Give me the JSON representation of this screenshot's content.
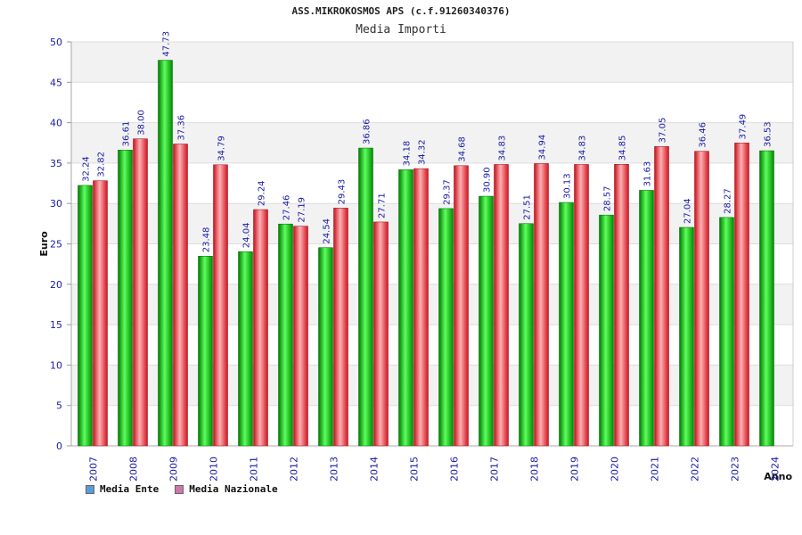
{
  "chart_data": {
    "type": "bar",
    "title": "ASS.MIKROKOSMOS APS (c.f.91260340376)",
    "subtitle": "Media Importi",
    "ylabel": "Euro",
    "xlabel": "Anno",
    "ylim": [
      0,
      50
    ],
    "yticks": [
      0,
      5,
      10,
      15,
      20,
      25,
      30,
      35,
      40,
      45,
      50
    ],
    "categories": [
      "2007",
      "2008",
      "2009",
      "2010",
      "2011",
      "2012",
      "2013",
      "2014",
      "2015",
      "2016",
      "2017",
      "2018",
      "2019",
      "2020",
      "2021",
      "2022",
      "2023",
      "2024"
    ],
    "series": [
      {
        "name": "Media Ente",
        "color": "#00b400",
        "legend_color": "#5b9bd5",
        "values": [
          32.24,
          36.61,
          47.73,
          23.48,
          24.04,
          27.46,
          24.54,
          36.86,
          34.18,
          29.37,
          30.9,
          27.51,
          30.13,
          28.57,
          31.63,
          27.04,
          28.27,
          36.53
        ],
        "labels": [
          "32.24",
          "36.61",
          "47.73",
          "23.48",
          "24.04",
          "27.46",
          "24.54",
          "36.86",
          "34.18",
          "29.37",
          "30.90",
          "27.51",
          "30.13",
          "28.57",
          "31.63",
          "27.04",
          "28.27",
          "36.53"
        ]
      },
      {
        "name": "Media Nazionale",
        "color": "#e8202a",
        "legend_color": "#cc77aa",
        "values": [
          32.82,
          38.0,
          37.36,
          34.79,
          29.24,
          27.19,
          29.43,
          27.71,
          34.32,
          34.68,
          34.83,
          34.94,
          34.83,
          34.85,
          37.05,
          36.46,
          37.49,
          null
        ],
        "labels": [
          "32.82",
          "38.00",
          "37.36",
          "34.79",
          "29.24",
          "27.19",
          "29.43",
          "27.71",
          "34.32",
          "34.68",
          "34.83",
          "34.94",
          "34.83",
          "34.85",
          "37.05",
          "36.46",
          "37.49",
          ""
        ]
      }
    ],
    "grid": true,
    "legend_position": "bottom-left"
  }
}
